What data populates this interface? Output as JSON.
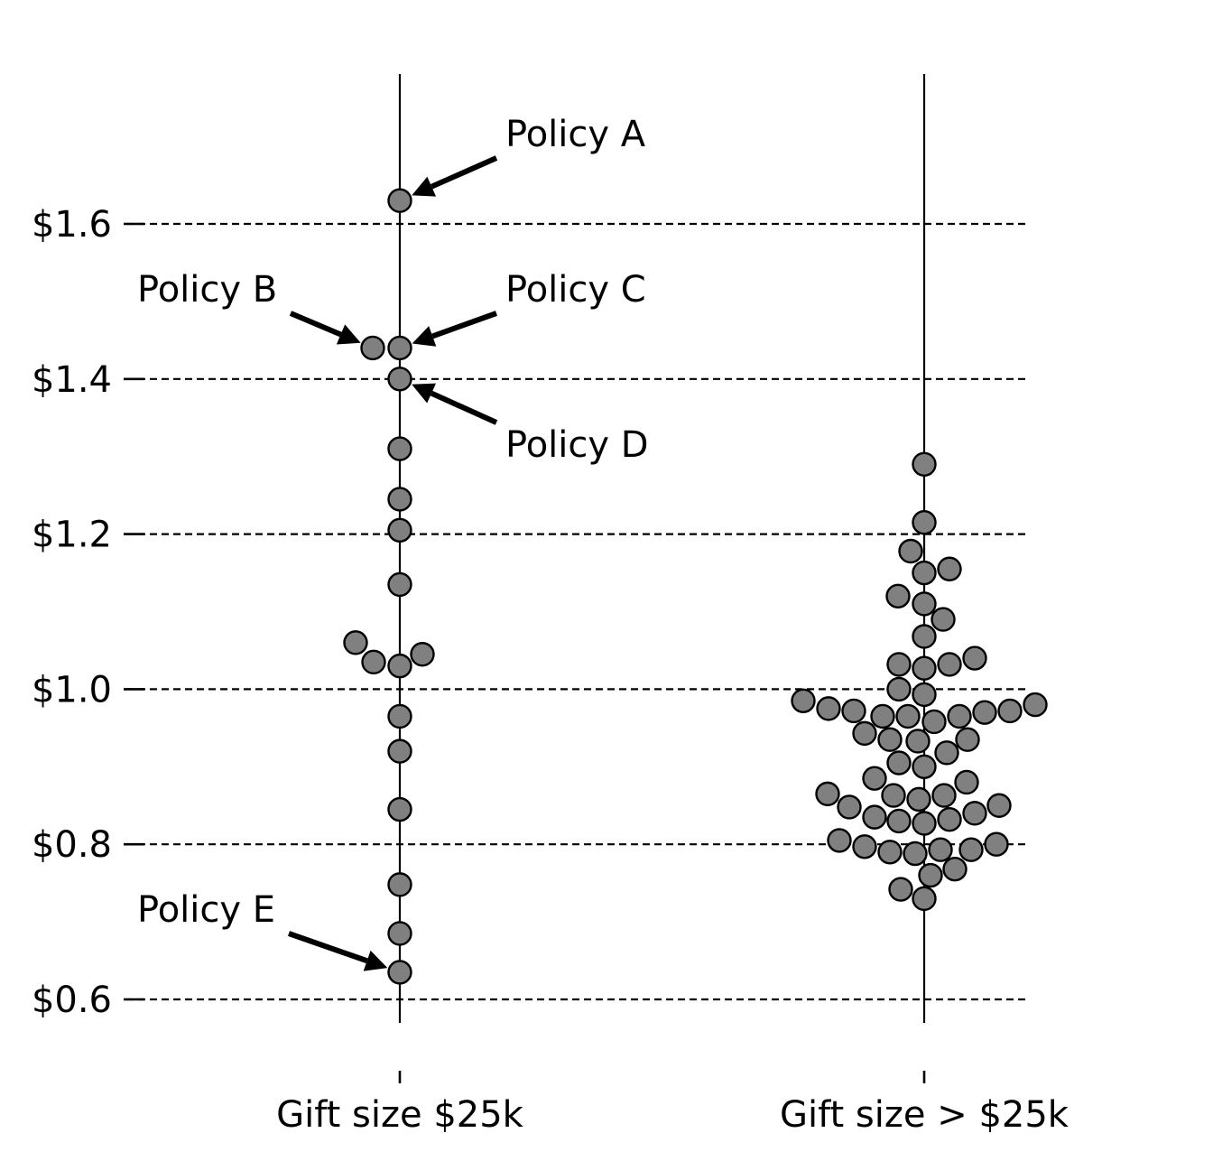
{
  "chart_data": {
    "type": "scatter",
    "subtype": "swarm",
    "title": "",
    "xlabel": "",
    "ylabel": "",
    "ylim": [
      0.55,
      1.8
    ],
    "y_ticks": [
      {
        "value": 0.6,
        "label": "$0.6"
      },
      {
        "value": 0.8,
        "label": "$0.8"
      },
      {
        "value": 1.0,
        "label": "$1.0"
      },
      {
        "value": 1.2,
        "label": "$1.2"
      },
      {
        "value": 1.4,
        "label": "$1.4"
      },
      {
        "value": 1.6,
        "label": "$1.6"
      }
    ],
    "grid": "horizontal dashed",
    "colors": {
      "marker_fill": "#808080",
      "marker_edge": "#000000",
      "grid": "#000000"
    },
    "categories": [
      "Gift size $25k",
      "Gift size > $25k"
    ],
    "series": [
      {
        "category": "Gift size $25k",
        "points": [
          [
            0,
            1.63
          ],
          [
            -0.6,
            1.44
          ],
          [
            0,
            1.44
          ],
          [
            0,
            1.4
          ],
          [
            0,
            1.31
          ],
          [
            0,
            1.245
          ],
          [
            0,
            1.205
          ],
          [
            0,
            1.135
          ],
          [
            -0.98,
            1.06
          ],
          [
            -0.58,
            1.035
          ],
          [
            0,
            1.03
          ],
          [
            0.5,
            1.045
          ],
          [
            0,
            0.965
          ],
          [
            0,
            0.92
          ],
          [
            0,
            0.845
          ],
          [
            0,
            0.748
          ],
          [
            0,
            0.685
          ],
          [
            0,
            0.635
          ]
        ]
      },
      {
        "category": "Gift size > $25k",
        "points": [
          [
            0,
            1.29
          ],
          [
            0,
            1.215
          ],
          [
            -0.3,
            1.178
          ],
          [
            0,
            1.15
          ],
          [
            0.56,
            1.155
          ],
          [
            -0.58,
            1.12
          ],
          [
            0,
            1.11
          ],
          [
            0.42,
            1.09
          ],
          [
            0,
            1.068
          ],
          [
            -0.56,
            1.032
          ],
          [
            0,
            1.027
          ],
          [
            0.56,
            1.032
          ],
          [
            1.12,
            1.04
          ],
          [
            -0.56,
            1.0
          ],
          [
            0,
            0.993
          ],
          [
            -2.68,
            0.985
          ],
          [
            -2.12,
            0.975
          ],
          [
            -1.56,
            0.972
          ],
          [
            -0.92,
            0.965
          ],
          [
            -0.36,
            0.965
          ],
          [
            0.22,
            0.958
          ],
          [
            0.78,
            0.965
          ],
          [
            1.34,
            0.97
          ],
          [
            1.9,
            0.972
          ],
          [
            2.46,
            0.98
          ],
          [
            -1.32,
            0.943
          ],
          [
            -0.76,
            0.935
          ],
          [
            -0.14,
            0.933
          ],
          [
            0.5,
            0.918
          ],
          [
            0.96,
            0.935
          ],
          [
            -0.56,
            0.905
          ],
          [
            0,
            0.9
          ],
          [
            -1.1,
            0.885
          ],
          [
            0.94,
            0.88
          ],
          [
            -2.14,
            0.865
          ],
          [
            -0.68,
            0.863
          ],
          [
            -0.12,
            0.858
          ],
          [
            0.44,
            0.863
          ],
          [
            -1.66,
            0.848
          ],
          [
            1.66,
            0.85
          ],
          [
            -1.1,
            0.835
          ],
          [
            -0.56,
            0.83
          ],
          [
            0,
            0.827
          ],
          [
            0.56,
            0.832
          ],
          [
            1.12,
            0.84
          ],
          [
            -1.88,
            0.805
          ],
          [
            -1.32,
            0.797
          ],
          [
            -0.76,
            0.79
          ],
          [
            -0.2,
            0.788
          ],
          [
            0.36,
            0.793
          ],
          [
            1.04,
            0.793
          ],
          [
            1.6,
            0.8
          ],
          [
            0.14,
            0.76
          ],
          [
            0.68,
            0.768
          ],
          [
            -0.52,
            0.742
          ],
          [
            0,
            0.73
          ]
        ]
      }
    ],
    "annotations": [
      {
        "text": "Policy A",
        "target_category": "Gift size $25k",
        "target": [
          0,
          1.63
        ]
      },
      {
        "text": "Policy B",
        "target_category": "Gift size $25k",
        "target": [
          -0.6,
          1.44
        ]
      },
      {
        "text": "Policy C",
        "target_category": "Gift size $25k",
        "target": [
          0,
          1.44
        ]
      },
      {
        "text": "Policy D",
        "target_category": "Gift size $25k",
        "target": [
          0,
          1.4
        ]
      },
      {
        "text": "Policy E",
        "target_category": "Gift size $25k",
        "target": [
          0,
          0.635
        ]
      }
    ]
  }
}
